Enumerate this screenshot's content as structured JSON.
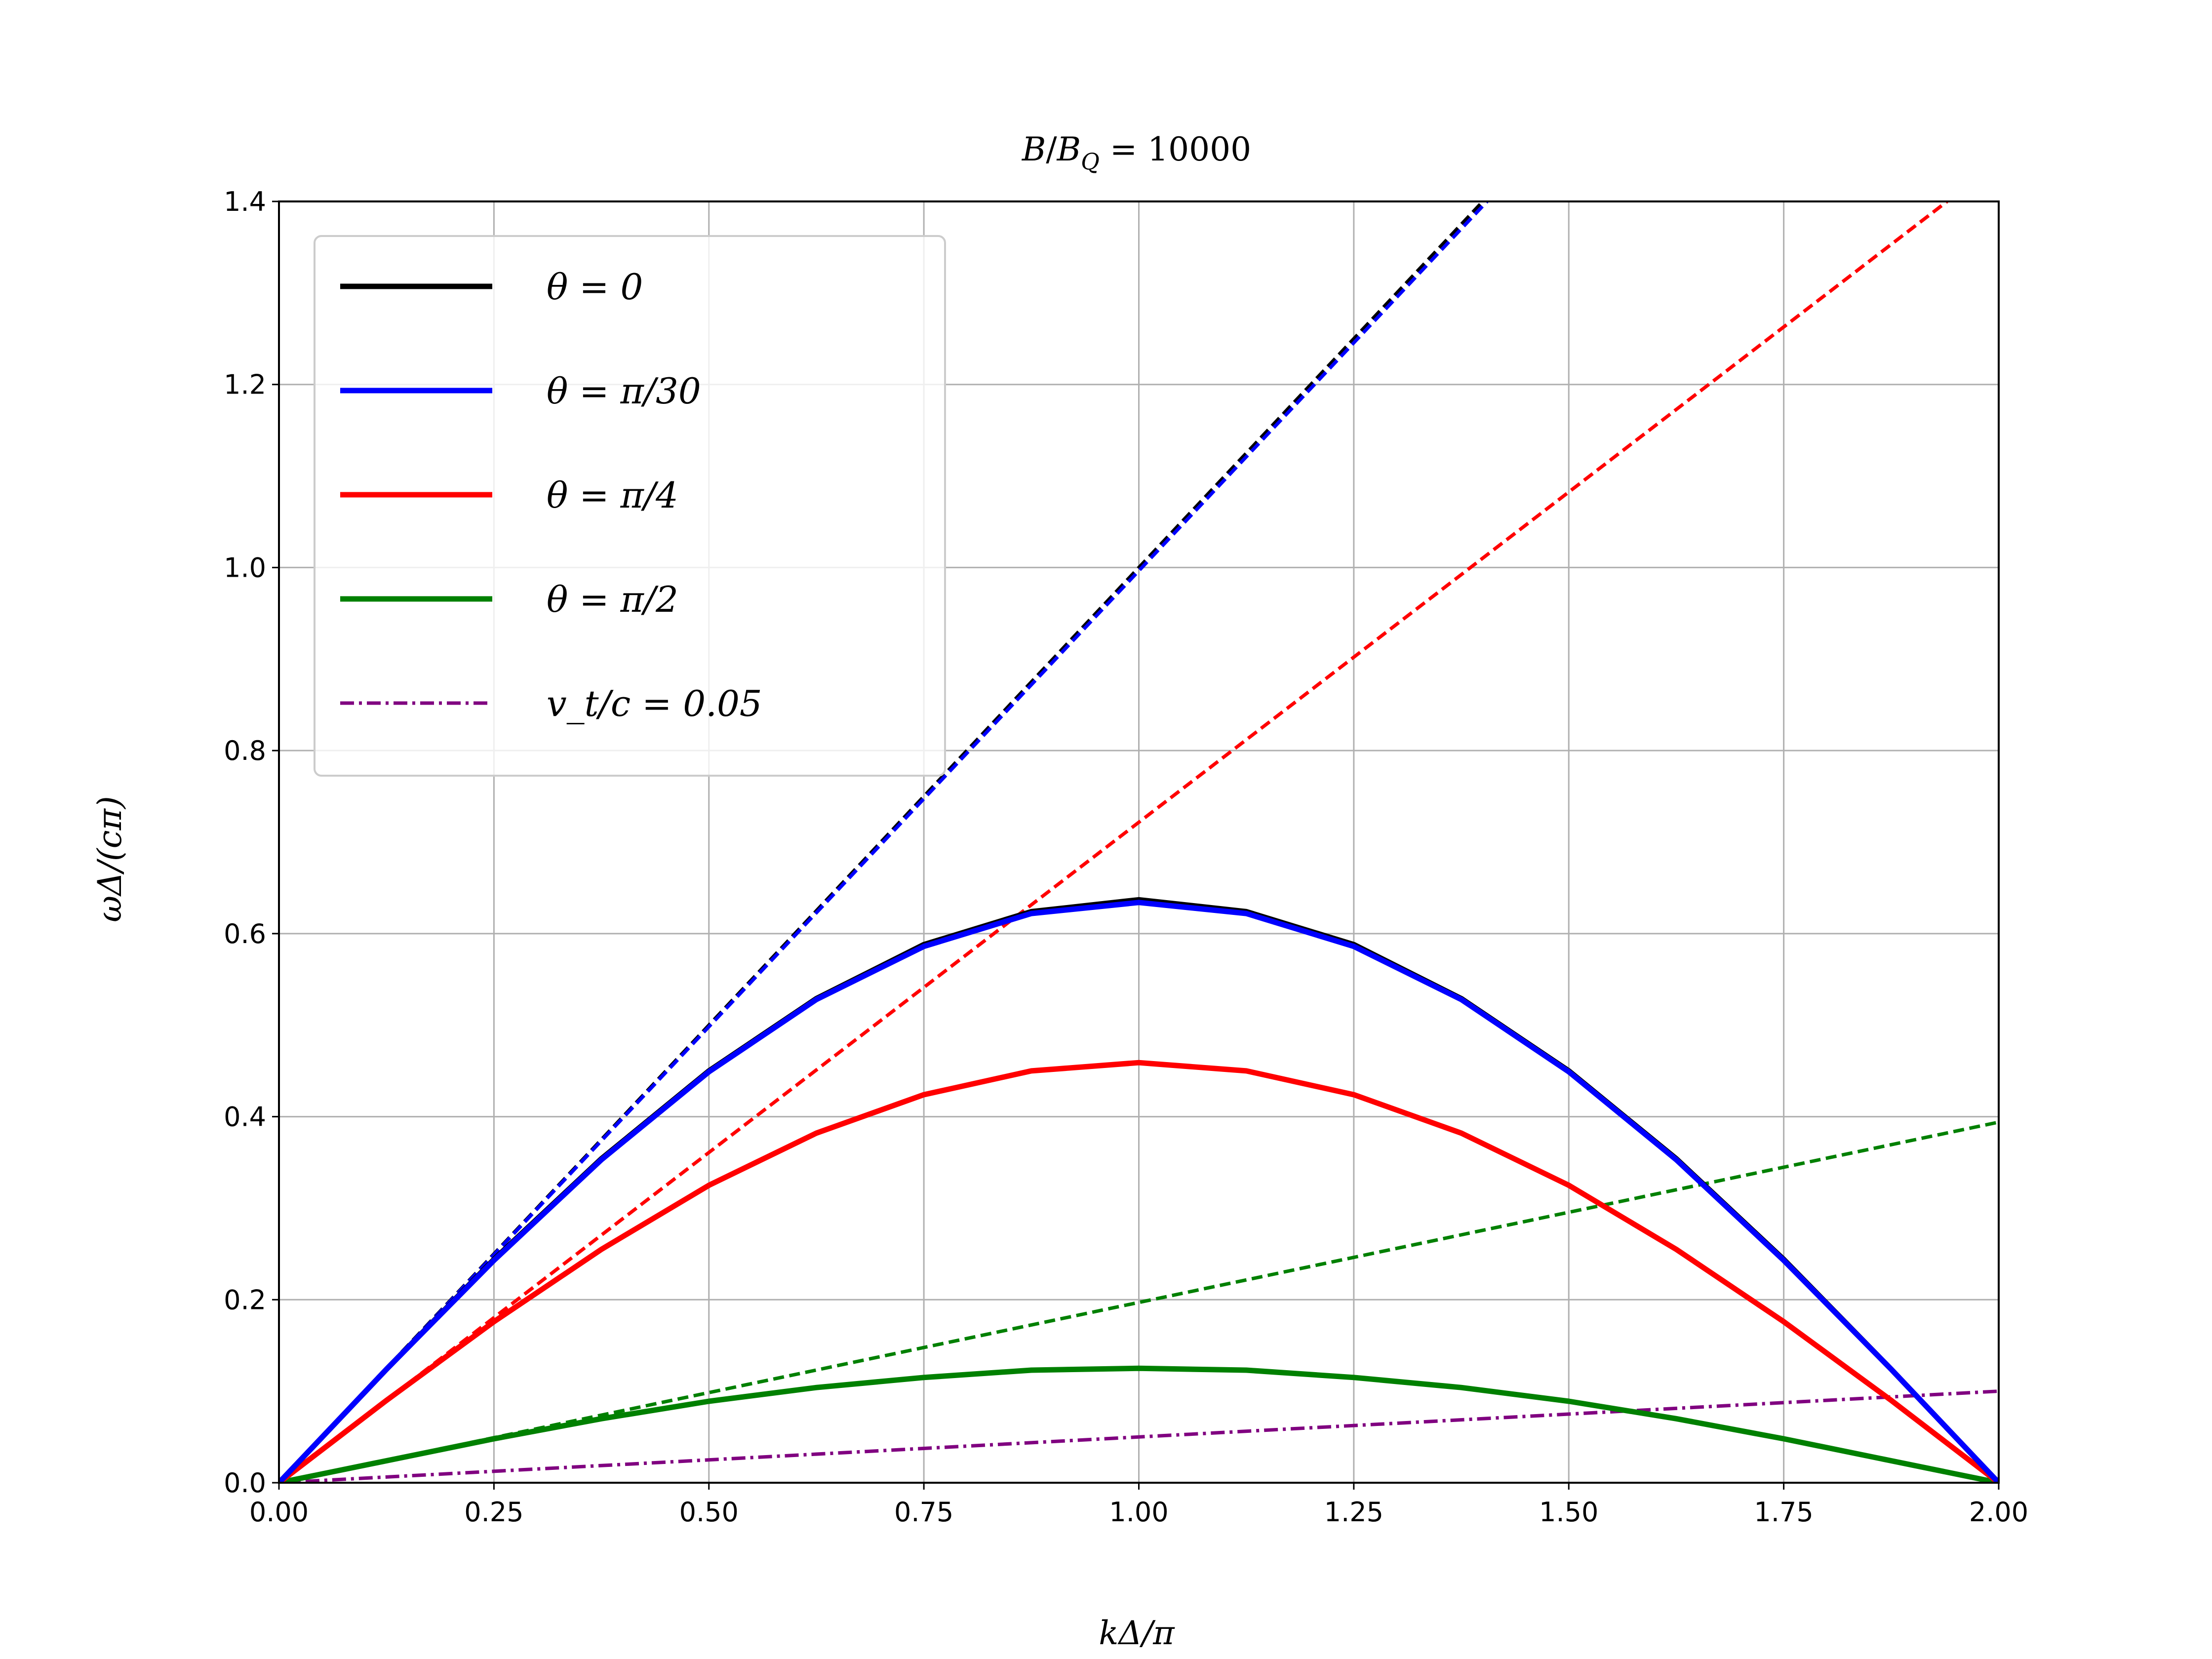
{
  "chart_data": {
    "type": "line",
    "title": "B/B_Q = 10000",
    "xlabel": "kΔ/π",
    "ylabel": "ωΔ/(cπ)",
    "xlim": [
      0,
      2
    ],
    "ylim": [
      0,
      1.4
    ],
    "xticks": [
      "0.00",
      "0.25",
      "0.50",
      "0.75",
      "1.00",
      "1.25",
      "1.50",
      "1.75",
      "2.00"
    ],
    "yticks": [
      "0.0",
      "0.2",
      "0.4",
      "0.6",
      "0.8",
      "1.0",
      "1.2",
      "1.4"
    ],
    "grid": true,
    "legend_position": "top-left",
    "series": [
      {
        "name": "θ = 0",
        "color": "#000000",
        "style": "solid",
        "x": [
          0,
          0.125,
          0.25,
          0.375,
          0.5,
          0.625,
          0.75,
          0.875,
          1.0,
          1.125,
          1.25,
          1.375,
          1.5,
          1.625,
          1.75,
          1.875,
          2.0
        ],
        "y": [
          0,
          0.124,
          0.244,
          0.354,
          0.45,
          0.529,
          0.588,
          0.624,
          0.637,
          0.624,
          0.588,
          0.529,
          0.45,
          0.354,
          0.244,
          0.124,
          0
        ]
      },
      {
        "name": "θ = π/30",
        "color": "#0000ff",
        "style": "solid",
        "x": [
          0,
          0.125,
          0.25,
          0.375,
          0.5,
          0.625,
          0.75,
          0.875,
          1.0,
          1.125,
          1.25,
          1.375,
          1.5,
          1.625,
          1.75,
          1.875,
          2.0
        ],
        "y": [
          0,
          0.124,
          0.243,
          0.353,
          0.449,
          0.528,
          0.586,
          0.622,
          0.634,
          0.622,
          0.586,
          0.528,
          0.449,
          0.353,
          0.243,
          0.124,
          0
        ]
      },
      {
        "name": "θ = π/4",
        "color": "#ff0000",
        "style": "solid",
        "x": [
          0,
          0.125,
          0.25,
          0.375,
          0.5,
          0.625,
          0.75,
          0.875,
          1.0,
          1.125,
          1.25,
          1.375,
          1.5,
          1.625,
          1.75,
          1.875,
          2.0
        ],
        "y": [
          0,
          0.09,
          0.176,
          0.255,
          0.325,
          0.382,
          0.424,
          0.45,
          0.459,
          0.45,
          0.424,
          0.382,
          0.325,
          0.255,
          0.176,
          0.09,
          0
        ]
      },
      {
        "name": "θ = π/2",
        "color": "#008000",
        "style": "solid",
        "x": [
          0,
          0.125,
          0.25,
          0.375,
          0.5,
          0.625,
          0.75,
          0.875,
          1.0,
          1.125,
          1.25,
          1.375,
          1.5,
          1.625,
          1.75,
          1.875,
          2.0
        ],
        "y": [
          0,
          0.024,
          0.048,
          0.07,
          0.089,
          0.104,
          0.115,
          0.123,
          0.125,
          0.123,
          0.115,
          0.104,
          0.089,
          0.07,
          0.048,
          0.024,
          0
        ]
      },
      {
        "name": "v_t/c = 0.05",
        "color": "#800080",
        "style": "dashdot",
        "x": [
          0,
          2
        ],
        "y": [
          0,
          0.1
        ]
      },
      {
        "color": "#000000",
        "style": "dashed",
        "x": [
          0,
          1.4
        ],
        "y": [
          0,
          1.4
        ]
      },
      {
        "color": "#0000ff",
        "style": "dashed",
        "x": [
          0,
          1.405
        ],
        "y": [
          0,
          1.4
        ]
      },
      {
        "color": "#ff0000",
        "style": "dashed",
        "x": [
          0,
          1.94
        ],
        "y": [
          0,
          1.4
        ]
      },
      {
        "color": "#008000",
        "style": "dashed",
        "x": [
          0,
          2
        ],
        "y": [
          0,
          0.394
        ]
      }
    ]
  }
}
